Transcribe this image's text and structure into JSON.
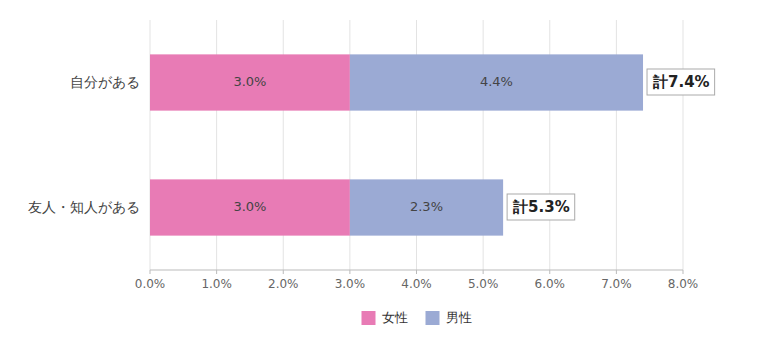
{
  "chart_data": {
    "type": "bar",
    "orientation": "horizontal",
    "stacked": true,
    "data_labels": true,
    "grid": true,
    "legend": "bottom",
    "categories": [
      "自分がある",
      "友人・知人がある"
    ],
    "series": [
      {
        "name": "女性",
        "color": "#E87BB5",
        "values": [
          3.0,
          3.0
        ],
        "value_labels": [
          "3.0%",
          "3.0%"
        ]
      },
      {
        "name": "男性",
        "color": "#9BAAD4",
        "values": [
          4.4,
          2.3
        ],
        "value_labels": [
          "4.4%",
          "2.3%"
        ]
      }
    ],
    "annotations": [
      "計7.4%",
      "計5.3%"
    ],
    "xlim": [
      0.0,
      8.0
    ],
    "xticks": [
      {
        "value": 0.0,
        "label": "0.0%"
      },
      {
        "value": 1.0,
        "label": "1.0%"
      },
      {
        "value": 2.0,
        "label": "2.0%"
      },
      {
        "value": 3.0,
        "label": "3.0%"
      },
      {
        "value": 4.0,
        "label": "4.0%"
      },
      {
        "value": 5.0,
        "label": "5.0%"
      },
      {
        "value": 6.0,
        "label": "6.0%"
      },
      {
        "value": 7.0,
        "label": "7.0%"
      },
      {
        "value": 8.0,
        "label": "8.0%"
      }
    ]
  }
}
